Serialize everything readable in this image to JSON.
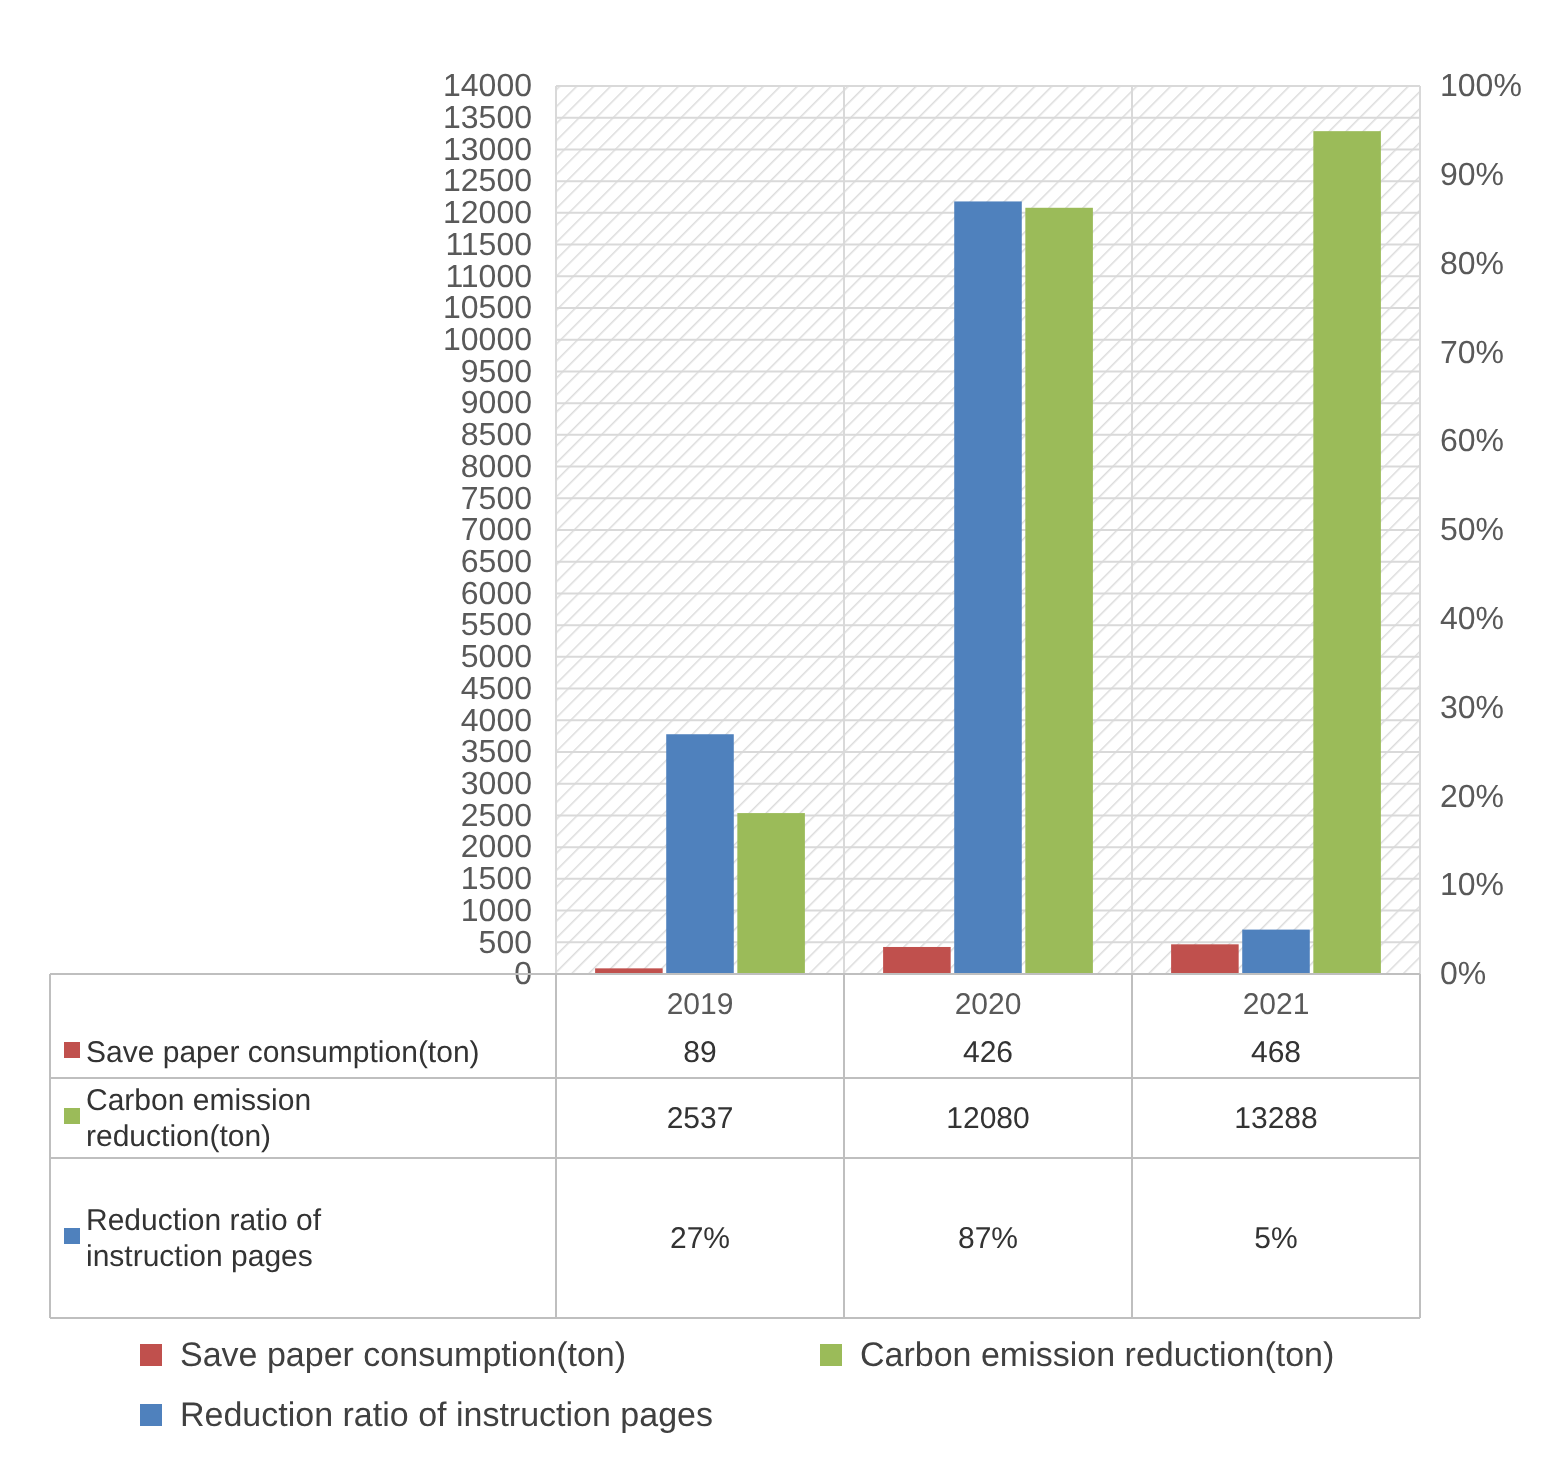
{
  "chart_data": {
    "type": "bar",
    "categories": [
      "2019",
      "2020",
      "2021"
    ],
    "series": [
      {
        "name": "Save paper consumption(ton)",
        "color": "#c0504d",
        "values": [
          89,
          426,
          468
        ],
        "value_labels": [
          "89",
          "426",
          "468"
        ]
      },
      {
        "name": "Carbon emission reduction(ton)",
        "color": "#9bbb59",
        "values": [
          2537,
          12080,
          13288
        ],
        "value_labels": [
          "2537",
          "12080",
          "13288"
        ]
      },
      {
        "name": "Reduction ratio of instruction pages",
        "color": "#4f81bd",
        "axis": "y2",
        "values": [
          27,
          87,
          5
        ],
        "value_labels": [
          "27%",
          "87%",
          "5%"
        ]
      }
    ],
    "ylim": [
      0,
      14000
    ],
    "yticks": [
      0,
      500,
      1000,
      1500,
      2000,
      2500,
      3000,
      3500,
      4000,
      4500,
      5000,
      5500,
      6000,
      6500,
      7000,
      7500,
      8000,
      8500,
      9000,
      9500,
      10000,
      10500,
      11000,
      11500,
      12000,
      12500,
      13000,
      13500,
      14000
    ],
    "y2lim": [
      0,
      100
    ],
    "y2ticks": [
      {
        "value": 0,
        "label": "0%"
      },
      {
        "value": 10,
        "label": "10%"
      },
      {
        "value": 20,
        "label": "20%"
      },
      {
        "value": 30,
        "label": "30%"
      },
      {
        "value": 40,
        "label": "40%"
      },
      {
        "value": 50,
        "label": "50%"
      },
      {
        "value": 60,
        "label": "60%"
      },
      {
        "value": 70,
        "label": "70%"
      },
      {
        "value": 80,
        "label": "80%"
      },
      {
        "value": 90,
        "label": "90%"
      },
      {
        "value": 100,
        "label": "100%"
      }
    ],
    "grid": true,
    "legend": "bottom"
  }
}
